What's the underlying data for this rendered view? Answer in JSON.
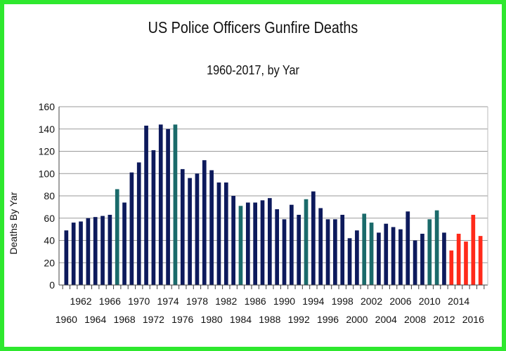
{
  "chart_data": {
    "type": "bar",
    "title": "US Police Officers Gunfire Deaths",
    "subtitle": "1960-2017, by Yar",
    "xlabel": "",
    "ylabel": "Deaths By Yar",
    "ylim": [
      0,
      160
    ],
    "yticks": [
      0,
      20,
      40,
      60,
      80,
      100,
      120,
      140,
      160
    ],
    "grid": true,
    "legend": "none",
    "colors": {
      "bar_main": "#0d1a5c",
      "bar_highlight": "#1a6a6a",
      "bar_recent": "#ff2a1a",
      "grid": "#9a9a9a",
      "frame": "#2ee82e"
    },
    "categories": [
      1960,
      1961,
      1962,
      1963,
      1964,
      1965,
      1966,
      1967,
      1968,
      1969,
      1970,
      1971,
      1972,
      1973,
      1974,
      1975,
      1976,
      1977,
      1978,
      1979,
      1980,
      1981,
      1982,
      1983,
      1984,
      1985,
      1986,
      1987,
      1988,
      1989,
      1990,
      1991,
      1992,
      1993,
      1994,
      1995,
      1996,
      1997,
      1998,
      1999,
      2000,
      2001,
      2002,
      2003,
      2004,
      2005,
      2006,
      2007,
      2008,
      2009,
      2010,
      2011,
      2012,
      2013,
      2014,
      2015,
      2016,
      2017
    ],
    "values": [
      49,
      56,
      57,
      60,
      61,
      62,
      63,
      86,
      74,
      101,
      110,
      143,
      121,
      144,
      140,
      144,
      104,
      96,
      100,
      112,
      103,
      92,
      92,
      80,
      71,
      74,
      74,
      76,
      78,
      68,
      59,
      72,
      63,
      77,
      84,
      69,
      59,
      59,
      63,
      42,
      49,
      64,
      56,
      47,
      55,
      52,
      50,
      66,
      40,
      46,
      59,
      67,
      47,
      31,
      46,
      39,
      63,
      44
    ],
    "bar_groups": [
      "main",
      "main",
      "main",
      "main",
      "main",
      "main",
      "main",
      "highlight",
      "main",
      "main",
      "main",
      "main",
      "main",
      "main",
      "main",
      "highlight",
      "main",
      "main",
      "main",
      "main",
      "main",
      "main",
      "main",
      "main",
      "highlight",
      "main",
      "main",
      "main",
      "main",
      "main",
      "main",
      "main",
      "main",
      "highlight",
      "main",
      "main",
      "main",
      "main",
      "main",
      "main",
      "main",
      "highlight",
      "highlight",
      "main",
      "main",
      "main",
      "main",
      "main",
      "main",
      "main",
      "highlight",
      "highlight",
      "main",
      "recent",
      "recent",
      "recent",
      "recent",
      "recent"
    ],
    "x_tick_labels_upper": [
      "1962",
      "1966",
      "1970",
      "1974",
      "1978",
      "1982",
      "1986",
      "1990",
      "1994",
      "1998",
      "2002",
      "2006",
      "2010",
      "2014"
    ],
    "x_tick_labels_lower": [
      "1960",
      "1964",
      "1968",
      "1972",
      "1976",
      "1980",
      "1984",
      "1988",
      "1992",
      "1996",
      "2000",
      "2004",
      "2008",
      "2012",
      "2016"
    ]
  }
}
